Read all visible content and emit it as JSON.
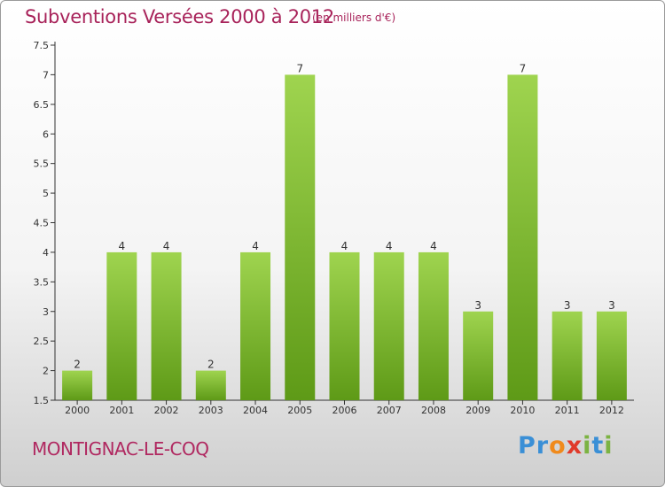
{
  "header": {
    "title": "Subventions Versées 2000 à 2012",
    "unit": "(en milliers d'€)"
  },
  "footer": {
    "commune": "MONTIGNAC-LE-COQ",
    "brand_letters": [
      "P",
      "r",
      "o",
      "x",
      "i",
      "t",
      "i"
    ],
    "brand_colors": [
      "#3a8fd6",
      "#3a8fd6",
      "#f08a1c",
      "#e03a2a",
      "#7cb342",
      "#3a8fd6",
      "#7cb342"
    ]
  },
  "colors": {
    "title": "#a8235a",
    "bar_light": "#9fd44f",
    "bar_dark": "#5e9a17",
    "axis": "#333333",
    "grid": "#c8c8c8"
  },
  "chart_data": {
    "type": "bar",
    "categories": [
      "2000",
      "2001",
      "2002",
      "2003",
      "2004",
      "2005",
      "2006",
      "2007",
      "2008",
      "2009",
      "2010",
      "2011",
      "2012"
    ],
    "values": [
      2,
      4,
      4,
      2,
      4,
      7,
      4,
      4,
      4,
      3,
      7,
      3,
      3
    ],
    "data_labels": [
      "2",
      "4",
      "4",
      "2",
      "4",
      "7",
      "4",
      "4",
      "4",
      "3",
      "7",
      "3",
      "3"
    ],
    "title": "Subventions Versées 2000 à 2012",
    "xlabel": "",
    "ylabel": "",
    "ylim": [
      1.5,
      7.5
    ],
    "yticks": [
      1.5,
      2,
      2.5,
      3,
      3.5,
      4,
      4.5,
      5,
      5.5,
      6,
      6.5,
      7,
      7.5
    ],
    "ytick_labels": [
      "1.5",
      "2",
      "2.5",
      "3",
      "3.5",
      "4",
      "4.5",
      "5",
      "5.5",
      "6",
      "6.5",
      "7",
      "7.5"
    ],
    "grid": false,
    "legend": "none"
  }
}
